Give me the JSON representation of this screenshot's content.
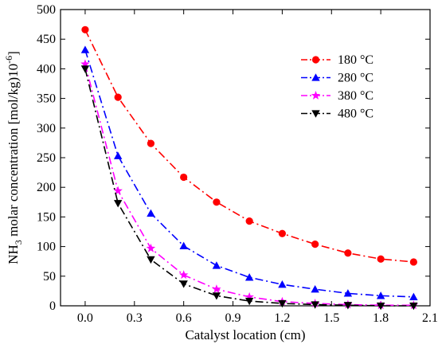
{
  "chart_data": {
    "type": "line",
    "xlabel": "Catalyst location (cm)",
    "ylabel_parts": {
      "prefix": "NH",
      "sub": "3",
      "middle": " molar concentration [mol/kg)10",
      "sup": "-6",
      "suffix": "]"
    },
    "xlim": [
      -0.15,
      2.1
    ],
    "ylim": [
      0,
      500
    ],
    "xticks": [
      0.0,
      0.3,
      0.6,
      0.9,
      1.2,
      1.5,
      1.8,
      2.1
    ],
    "xtick_labels": [
      "0.0",
      "0.3",
      "0.6",
      "0.9",
      "1.2",
      "1.5",
      "1.8",
      "2.1"
    ],
    "yticks": [
      0,
      50,
      100,
      150,
      200,
      250,
      300,
      350,
      400,
      450,
      500
    ],
    "ytick_labels": [
      "0",
      "50",
      "100",
      "150",
      "200",
      "250",
      "300",
      "350",
      "400",
      "450",
      "500"
    ],
    "legend_position": "top-right",
    "grid": false,
    "x": [
      0.0,
      0.2,
      0.4,
      0.6,
      0.8,
      1.0,
      1.2,
      1.4,
      1.6,
      1.8,
      2.0
    ],
    "series": [
      {
        "name": "180 °C",
        "color": "#ff0000",
        "marker": "circle",
        "dash": "10,4,2,4",
        "values": [
          466,
          352,
          274,
          217,
          175,
          143,
          122,
          104,
          89,
          79,
          74
        ]
      },
      {
        "name": "280 °C",
        "color": "#0000ff",
        "marker": "triangle-up",
        "dash": "10,4,2,4",
        "values": [
          432,
          253,
          156,
          101,
          68,
          48,
          36,
          28,
          21,
          17,
          15
        ]
      },
      {
        "name": "380 °C",
        "color": "#ff00ff",
        "marker": "star",
        "dash": "10,4,2,4",
        "values": [
          408,
          194,
          97,
          52,
          28,
          15,
          7,
          4,
          2,
          1,
          1
        ]
      },
      {
        "name": "480 °C",
        "color": "#000000",
        "marker": "triangle-down",
        "dash": "10,4,2,4",
        "values": [
          400,
          173,
          78,
          37,
          17,
          8,
          4,
          2,
          1,
          0,
          0
        ]
      }
    ]
  }
}
